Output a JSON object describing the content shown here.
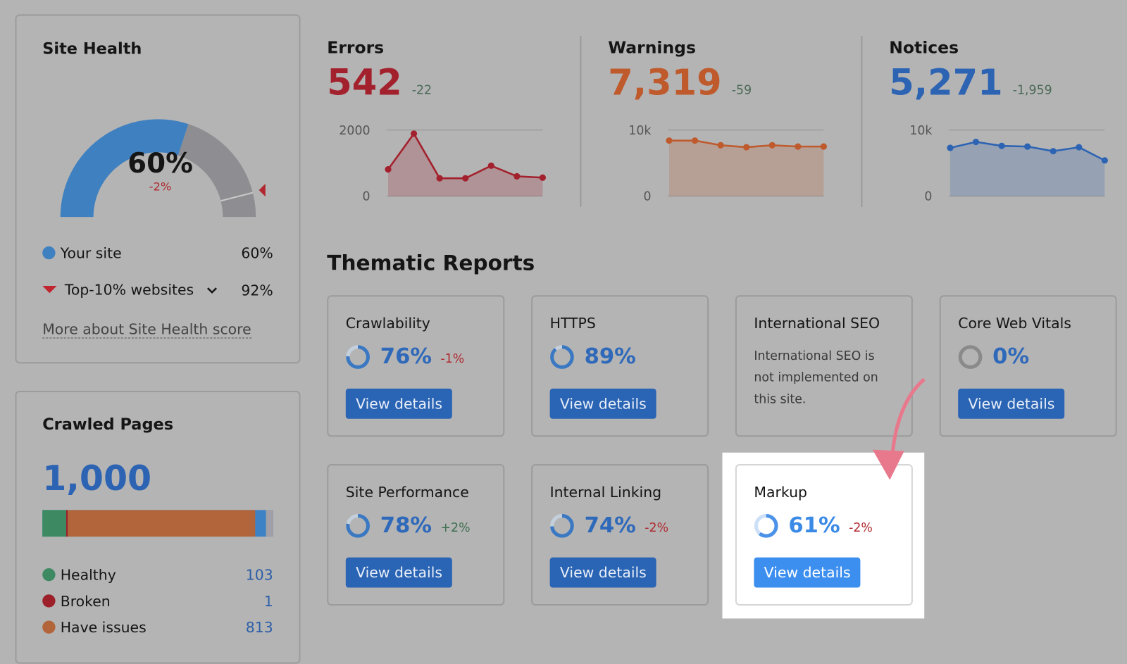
{
  "site_health": {
    "title": "Site Health",
    "score": {
      "value": 60,
      "label": "60%"
    },
    "change": "-2%",
    "legend": [
      {
        "name": "Your site",
        "value": {
          "value": 60,
          "label": "60%"
        }
      },
      {
        "name": "Top-10% websites",
        "value": {
          "value": 92,
          "label": "92%"
        }
      }
    ],
    "link": "More about Site Health score"
  },
  "crawled_pages": {
    "title": "Crawled Pages",
    "total": {
      "value": 1000,
      "label": "1,000"
    },
    "rows": [
      {
        "name": "Healthy",
        "value": 103,
        "color": "#3d8a62"
      },
      {
        "name": "Broken",
        "value": 1,
        "color": "#9c1f2a"
      },
      {
        "name": "Have issues",
        "value": 813,
        "color": "#b2653a"
      }
    ]
  },
  "metrics": [
    {
      "title": "Errors",
      "value": "542",
      "change": "-22",
      "color": "#a3202d",
      "ylim": [
        0,
        2000
      ],
      "yticks": [
        0,
        2000
      ],
      "trend": [
        810,
        1890,
        540,
        540,
        920,
        600,
        560
      ]
    },
    {
      "title": "Warnings",
      "value": "7,319",
      "change": "-59",
      "color": "#bf5a2c",
      "ylim": [
        0,
        10000
      ],
      "yticks": [
        0,
        {
          "value": 10000,
          "label": "10k"
        }
      ],
      "trend": [
        8400,
        8400,
        7700,
        7400,
        7700,
        7500,
        7500
      ]
    },
    {
      "title": "Notices",
      "value": "5,271",
      "change": "-1,959",
      "color": "#2d63b3",
      "ylim": [
        0,
        10000
      ],
      "yticks": [
        0,
        {
          "value": 10000,
          "label": "10k"
        }
      ],
      "trend": [
        7300,
        8200,
        7600,
        7500,
        6800,
        7400,
        5400
      ]
    }
  ],
  "thematic_reports": {
    "title": "Thematic Reports",
    "cards": [
      {
        "title": "Crawlability",
        "score": {
          "value": 76,
          "label": "76%"
        },
        "change": "-1%",
        "button": "View details"
      },
      {
        "title": "HTTPS",
        "score": {
          "value": 89,
          "label": "89%"
        },
        "button": "View details"
      },
      {
        "title": "International SEO",
        "text": "International SEO is not implemented on this site."
      },
      {
        "title": "Core Web Vitals",
        "score": {
          "value": 0,
          "label": "0%"
        },
        "button": "View details"
      },
      {
        "title": "Site Performance",
        "score": {
          "value": 78,
          "label": "78%"
        },
        "change": "+2%",
        "button": "View details"
      },
      {
        "title": "Internal Linking",
        "score": {
          "value": 74,
          "label": "74%"
        },
        "change": "-2%",
        "button": "View details"
      },
      {
        "title": "Markup",
        "score": {
          "value": 61,
          "label": "61%"
        },
        "change": "-2%",
        "button": "View details"
      }
    ]
  }
}
